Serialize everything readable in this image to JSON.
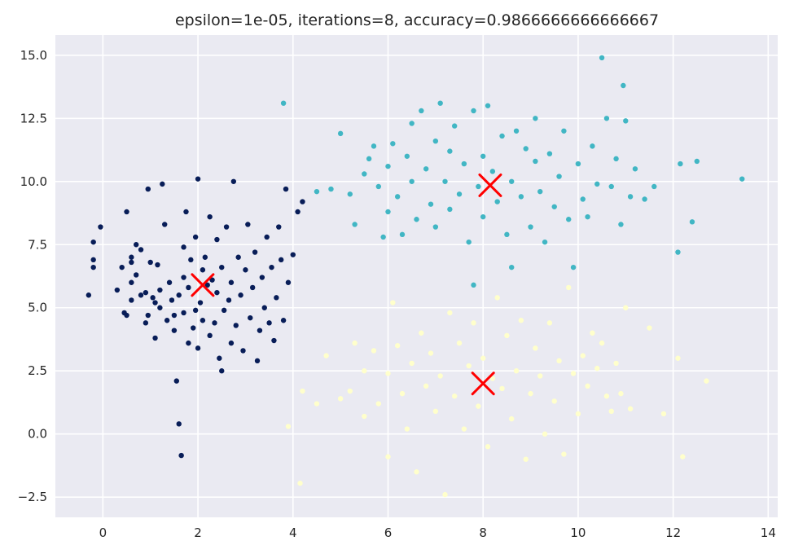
{
  "chart_data": {
    "type": "scatter",
    "title": "epsilon=1e-05, iterations=8, accuracy=0.9866666666666667",
    "xlabel": "",
    "ylabel": "",
    "xlim": [
      -1.0,
      14.2
    ],
    "ylim": [
      -3.3,
      15.8
    ],
    "xticks": [
      0,
      2,
      4,
      6,
      8,
      10,
      12,
      14
    ],
    "yticks": [
      -2.5,
      0.0,
      2.5,
      5.0,
      7.5,
      10.0,
      12.5,
      15.0
    ],
    "xtick_labels": [
      "0",
      "2",
      "4",
      "6",
      "8",
      "10",
      "12",
      "14"
    ],
    "ytick_labels": [
      "−2.5",
      "0.0",
      "2.5",
      "5.0",
      "7.5",
      "10.0",
      "12.5",
      "15.0"
    ],
    "grid": true,
    "background_color": "#eaeaf2",
    "clusters": [
      {
        "color": "#081d58",
        "center_estimate": [
          2.1,
          5.9
        ],
        "points": [
          [
            -0.3,
            5.5
          ],
          [
            -0.2,
            6.9
          ],
          [
            -0.2,
            6.6
          ],
          [
            -0.2,
            7.6
          ],
          [
            -0.05,
            8.2
          ],
          [
            0.3,
            5.7
          ],
          [
            0.4,
            6.6
          ],
          [
            0.45,
            4.8
          ],
          [
            0.5,
            4.7
          ],
          [
            0.5,
            8.8
          ],
          [
            0.6,
            5.3
          ],
          [
            0.6,
            6.0
          ],
          [
            0.6,
            6.8
          ],
          [
            0.6,
            7.0
          ],
          [
            0.7,
            7.5
          ],
          [
            0.7,
            6.3
          ],
          [
            0.8,
            5.5
          ],
          [
            0.8,
            7.3
          ],
          [
            0.9,
            5.6
          ],
          [
            0.9,
            4.4
          ],
          [
            0.95,
            4.7
          ],
          [
            0.95,
            9.7
          ],
          [
            1.0,
            6.8
          ],
          [
            1.05,
            5.4
          ],
          [
            1.1,
            5.2
          ],
          [
            1.1,
            3.8
          ],
          [
            1.15,
            6.7
          ],
          [
            1.2,
            5.0
          ],
          [
            1.2,
            5.7
          ],
          [
            1.25,
            9.9
          ],
          [
            1.3,
            8.3
          ],
          [
            1.35,
            4.5
          ],
          [
            1.4,
            6.0
          ],
          [
            1.45,
            5.3
          ],
          [
            1.5,
            4.7
          ],
          [
            1.5,
            4.1
          ],
          [
            1.55,
            2.1
          ],
          [
            1.6,
            0.4
          ],
          [
            1.65,
            -0.85
          ],
          [
            1.6,
            5.5
          ],
          [
            1.7,
            4.8
          ],
          [
            1.7,
            6.2
          ],
          [
            1.7,
            7.4
          ],
          [
            1.75,
            8.8
          ],
          [
            1.8,
            3.6
          ],
          [
            1.8,
            5.8
          ],
          [
            1.85,
            6.9
          ],
          [
            1.9,
            4.2
          ],
          [
            1.95,
            4.9
          ],
          [
            1.95,
            7.8
          ],
          [
            2.0,
            10.1
          ],
          [
            2.0,
            3.4
          ],
          [
            2.05,
            5.2
          ],
          [
            2.1,
            6.5
          ],
          [
            2.1,
            4.5
          ],
          [
            2.15,
            7.0
          ],
          [
            2.2,
            5.9
          ],
          [
            2.25,
            8.6
          ],
          [
            2.25,
            3.9
          ],
          [
            2.3,
            6.1
          ],
          [
            2.35,
            4.4
          ],
          [
            2.4,
            5.6
          ],
          [
            2.4,
            7.7
          ],
          [
            2.45,
            3.0
          ],
          [
            2.5,
            2.5
          ],
          [
            2.5,
            6.6
          ],
          [
            2.55,
            4.9
          ],
          [
            2.6,
            8.2
          ],
          [
            2.65,
            5.3
          ],
          [
            2.7,
            3.6
          ],
          [
            2.7,
            6.0
          ],
          [
            2.75,
            10.0
          ],
          [
            2.8,
            4.3
          ],
          [
            2.85,
            7.0
          ],
          [
            2.9,
            5.5
          ],
          [
            2.95,
            3.3
          ],
          [
            3.0,
            6.5
          ],
          [
            3.05,
            8.3
          ],
          [
            3.1,
            4.6
          ],
          [
            3.15,
            5.8
          ],
          [
            3.2,
            7.2
          ],
          [
            3.25,
            2.9
          ],
          [
            3.3,
            4.1
          ],
          [
            3.35,
            6.2
          ],
          [
            3.4,
            5.0
          ],
          [
            3.45,
            7.8
          ],
          [
            3.5,
            4.4
          ],
          [
            3.55,
            6.6
          ],
          [
            3.6,
            3.7
          ],
          [
            3.65,
            5.4
          ],
          [
            3.7,
            8.2
          ],
          [
            3.75,
            6.9
          ],
          [
            3.8,
            4.5
          ],
          [
            3.85,
            9.7
          ],
          [
            3.9,
            6.0
          ],
          [
            4.0,
            7.1
          ],
          [
            4.1,
            8.8
          ],
          [
            4.2,
            9.2
          ]
        ]
      },
      {
        "color": "#41b6c4",
        "center_estimate": [
          8.15,
          9.85
        ],
        "points": [
          [
            3.8,
            13.1
          ],
          [
            4.5,
            9.6
          ],
          [
            4.8,
            9.7
          ],
          [
            5.0,
            11.9
          ],
          [
            5.2,
            9.5
          ],
          [
            5.3,
            8.3
          ],
          [
            5.5,
            10.3
          ],
          [
            5.6,
            10.9
          ],
          [
            5.7,
            11.4
          ],
          [
            5.8,
            9.8
          ],
          [
            5.9,
            7.8
          ],
          [
            6.0,
            10.6
          ],
          [
            6.0,
            8.8
          ],
          [
            6.1,
            11.5
          ],
          [
            6.2,
            9.4
          ],
          [
            6.3,
            7.9
          ],
          [
            6.4,
            11.0
          ],
          [
            6.5,
            10.0
          ],
          [
            6.5,
            12.3
          ],
          [
            6.6,
            8.5
          ],
          [
            6.7,
            12.8
          ],
          [
            6.8,
            10.5
          ],
          [
            6.9,
            9.1
          ],
          [
            7.0,
            11.6
          ],
          [
            7.0,
            8.2
          ],
          [
            7.1,
            13.1
          ],
          [
            7.2,
            10.0
          ],
          [
            7.3,
            11.2
          ],
          [
            7.3,
            8.9
          ],
          [
            7.4,
            12.2
          ],
          [
            7.5,
            9.5
          ],
          [
            7.6,
            10.7
          ],
          [
            7.7,
            7.6
          ],
          [
            7.8,
            12.8
          ],
          [
            7.8,
            5.9
          ],
          [
            7.9,
            9.8
          ],
          [
            8.0,
            11.0
          ],
          [
            8.0,
            8.6
          ],
          [
            8.1,
            13.0
          ],
          [
            8.2,
            10.4
          ],
          [
            8.3,
            9.2
          ],
          [
            8.4,
            11.8
          ],
          [
            8.5,
            7.9
          ],
          [
            8.6,
            10.0
          ],
          [
            8.6,
            6.6
          ],
          [
            8.7,
            12.0
          ],
          [
            8.8,
            9.4
          ],
          [
            8.9,
            11.3
          ],
          [
            9.0,
            8.2
          ],
          [
            9.1,
            10.8
          ],
          [
            9.1,
            12.5
          ],
          [
            9.2,
            9.6
          ],
          [
            9.3,
            7.6
          ],
          [
            9.4,
            11.1
          ],
          [
            9.5,
            9.0
          ],
          [
            9.6,
            10.2
          ],
          [
            9.7,
            12.0
          ],
          [
            9.8,
            8.5
          ],
          [
            9.9,
            6.6
          ],
          [
            10.0,
            10.7
          ],
          [
            10.1,
            9.3
          ],
          [
            10.2,
            8.6
          ],
          [
            10.3,
            11.4
          ],
          [
            10.4,
            9.9
          ],
          [
            10.5,
            14.9
          ],
          [
            10.6,
            12.5
          ],
          [
            10.7,
            9.8
          ],
          [
            10.8,
            10.9
          ],
          [
            10.9,
            8.3
          ],
          [
            10.95,
            13.8
          ],
          [
            11.0,
            12.4
          ],
          [
            11.1,
            9.4
          ],
          [
            11.2,
            10.5
          ],
          [
            11.4,
            9.3
          ],
          [
            11.6,
            9.8
          ],
          [
            12.1,
            7.2
          ],
          [
            12.15,
            10.7
          ],
          [
            12.4,
            8.4
          ],
          [
            12.5,
            10.8
          ],
          [
            13.45,
            10.1
          ]
        ]
      },
      {
        "color": "#ffffcc",
        "center_estimate": [
          8.0,
          2.0
        ],
        "points": [
          [
            3.9,
            0.3
          ],
          [
            4.15,
            -1.95
          ],
          [
            4.2,
            1.7
          ],
          [
            4.5,
            1.2
          ],
          [
            4.7,
            3.1
          ],
          [
            5.0,
            1.4
          ],
          [
            5.2,
            1.7
          ],
          [
            5.3,
            3.6
          ],
          [
            5.5,
            2.5
          ],
          [
            5.5,
            0.7
          ],
          [
            5.7,
            3.3
          ],
          [
            5.8,
            1.2
          ],
          [
            6.0,
            2.4
          ],
          [
            6.0,
            -0.9
          ],
          [
            6.1,
            5.2
          ],
          [
            6.2,
            3.5
          ],
          [
            6.3,
            1.6
          ],
          [
            6.4,
            0.2
          ],
          [
            6.5,
            2.8
          ],
          [
            6.6,
            -1.5
          ],
          [
            6.7,
            4.0
          ],
          [
            6.8,
            1.9
          ],
          [
            6.9,
            3.2
          ],
          [
            7.0,
            0.9
          ],
          [
            7.1,
            2.3
          ],
          [
            7.2,
            -2.4
          ],
          [
            7.3,
            4.8
          ],
          [
            7.4,
            1.5
          ],
          [
            7.5,
            3.6
          ],
          [
            7.6,
            0.2
          ],
          [
            7.7,
            2.7
          ],
          [
            7.8,
            4.4
          ],
          [
            7.9,
            1.1
          ],
          [
            8.0,
            3.0
          ],
          [
            8.1,
            -0.5
          ],
          [
            8.2,
            2.2
          ],
          [
            8.3,
            5.4
          ],
          [
            8.4,
            1.8
          ],
          [
            8.5,
            3.9
          ],
          [
            8.6,
            0.6
          ],
          [
            8.7,
            2.5
          ],
          [
            8.8,
            4.5
          ],
          [
            8.9,
            -1.0
          ],
          [
            9.0,
            1.6
          ],
          [
            9.1,
            3.4
          ],
          [
            9.2,
            2.3
          ],
          [
            9.3,
            0.0
          ],
          [
            9.4,
            4.4
          ],
          [
            9.5,
            1.3
          ],
          [
            9.6,
            2.9
          ],
          [
            9.7,
            -0.8
          ],
          [
            9.8,
            5.8
          ],
          [
            9.9,
            2.4
          ],
          [
            10.0,
            0.8
          ],
          [
            10.1,
            3.1
          ],
          [
            10.2,
            1.9
          ],
          [
            10.3,
            4.0
          ],
          [
            10.4,
            2.6
          ],
          [
            10.5,
            3.6
          ],
          [
            10.6,
            1.5
          ],
          [
            10.7,
            0.9
          ],
          [
            10.8,
            2.8
          ],
          [
            10.9,
            1.6
          ],
          [
            11.0,
            5.0
          ],
          [
            11.1,
            1.0
          ],
          [
            11.5,
            4.2
          ],
          [
            11.8,
            0.8
          ],
          [
            12.1,
            3.0
          ],
          [
            12.2,
            -0.9
          ],
          [
            12.7,
            2.1
          ]
        ]
      }
    ],
    "centroids": {
      "color": "#ff0000",
      "marker": "x",
      "points": [
        [
          2.1,
          5.9
        ],
        [
          8.15,
          9.85
        ],
        [
          8.0,
          2.0
        ]
      ]
    }
  }
}
